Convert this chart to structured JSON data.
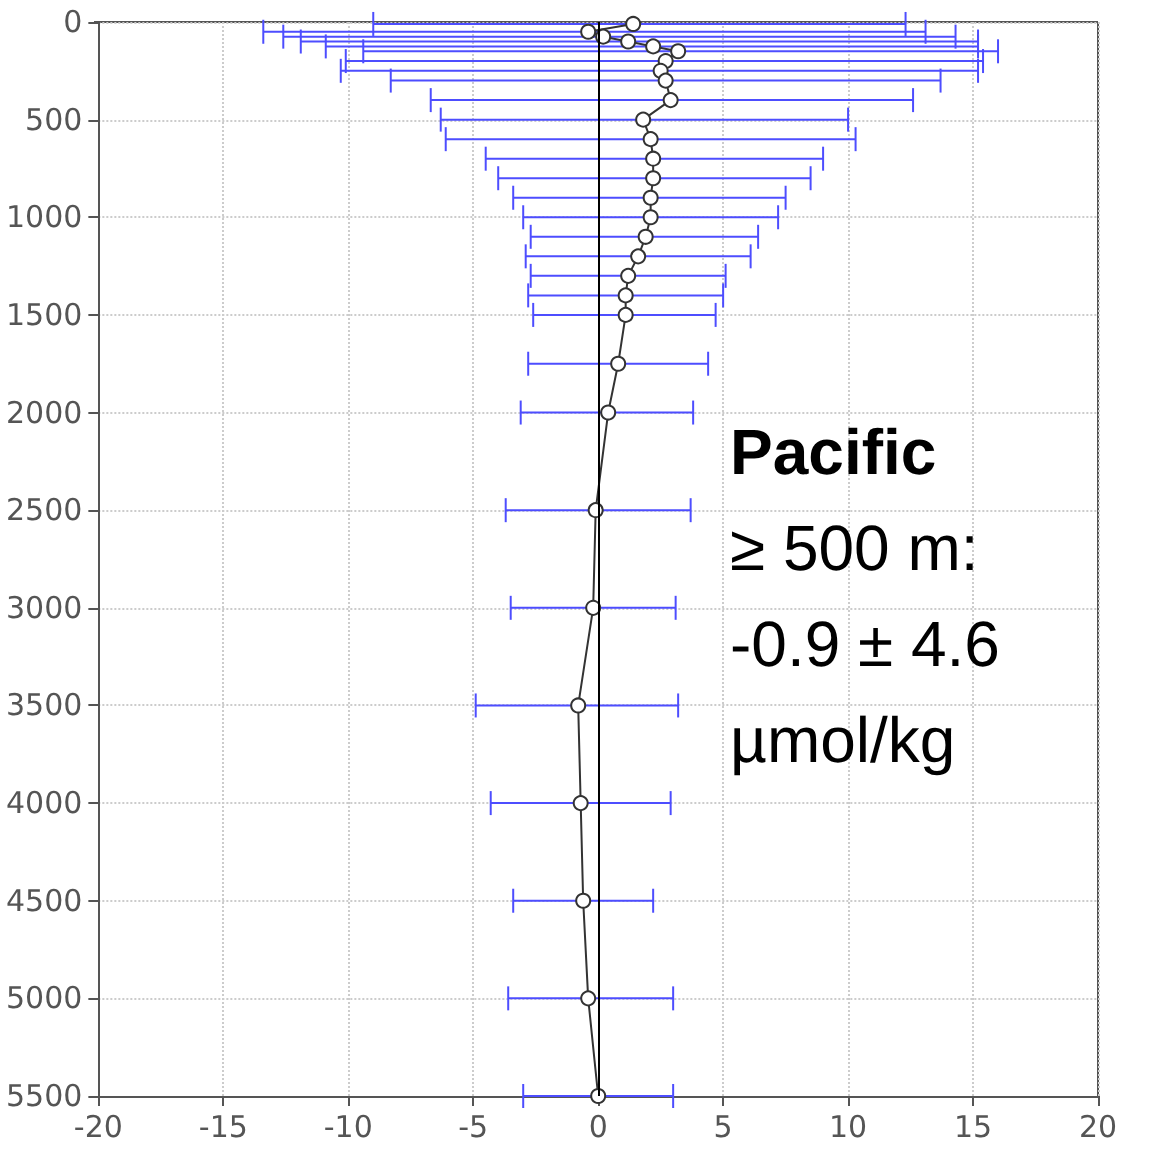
{
  "chart_data": {
    "type": "line",
    "marker": "circle",
    "line_style": "solid",
    "grid": true,
    "xlim": [
      -20,
      20
    ],
    "xticks": [
      -20,
      -15,
      -10,
      -5,
      0,
      5,
      10,
      15,
      20
    ],
    "ylim": [
      5500,
      0
    ],
    "yticks": [
      0,
      500,
      1000,
      1500,
      2000,
      2500,
      3000,
      3500,
      4000,
      4500,
      5000,
      5500
    ],
    "ref_lines": [
      {
        "axis": "x",
        "value": 0,
        "color": "#000000"
      }
    ],
    "annotations": [
      "Pacific",
      "≥ 500 m:",
      "-0.9 ± 4.6",
      "µmol/kg"
    ],
    "series": [
      {
        "color": "#333333",
        "x": [
          1.4,
          -0.4,
          0.2,
          1.2,
          2.2,
          3.2,
          2.7,
          2.5,
          2.7,
          2.9,
          1.8,
          2.1,
          2.2,
          2.2,
          2.1,
          2.1,
          1.9,
          1.6,
          1.2,
          1.1,
          1.1,
          0.8,
          0.4,
          -0.1,
          -0.2,
          -0.8,
          -0.7,
          -0.6,
          -0.4,
          0.0
        ],
        "values": [
          10,
          50,
          75,
          100,
          125,
          150,
          200,
          250,
          300,
          400,
          500,
          600,
          700,
          800,
          900,
          1000,
          1100,
          1200,
          1300,
          1400,
          1500,
          1750,
          2000,
          2500,
          3000,
          3500,
          4000,
          4500,
          5000,
          5500
        ],
        "xerrors": [
          [
            -9.0,
            12.3
          ],
          [
            -13.4,
            13.1
          ],
          [
            -12.6,
            14.3
          ],
          [
            -11.9,
            15.2
          ],
          [
            -10.9,
            15.2
          ],
          [
            -9.4,
            16.0
          ],
          [
            -10.1,
            15.4
          ],
          [
            -10.3,
            15.2
          ],
          [
            -8.3,
            13.7
          ],
          [
            -6.7,
            12.6
          ],
          [
            -6.3,
            10.0
          ],
          [
            -6.1,
            10.3
          ],
          [
            -4.5,
            9.0
          ],
          [
            -4.0,
            8.5
          ],
          [
            -3.4,
            7.5
          ],
          [
            -3.0,
            7.2
          ],
          [
            -2.7,
            6.4
          ],
          [
            -2.9,
            6.1
          ],
          [
            -2.7,
            5.1
          ],
          [
            -2.8,
            5.0
          ],
          [
            -2.6,
            4.7
          ],
          [
            -2.8,
            4.4
          ],
          [
            -3.1,
            3.8
          ],
          [
            -3.7,
            3.7
          ],
          [
            -3.5,
            3.1
          ],
          [
            -4.9,
            3.2
          ],
          [
            -4.3,
            2.9
          ],
          [
            -3.4,
            2.2
          ],
          [
            -3.6,
            3.0
          ],
          [
            -3.0,
            3.0
          ]
        ]
      }
    ]
  }
}
